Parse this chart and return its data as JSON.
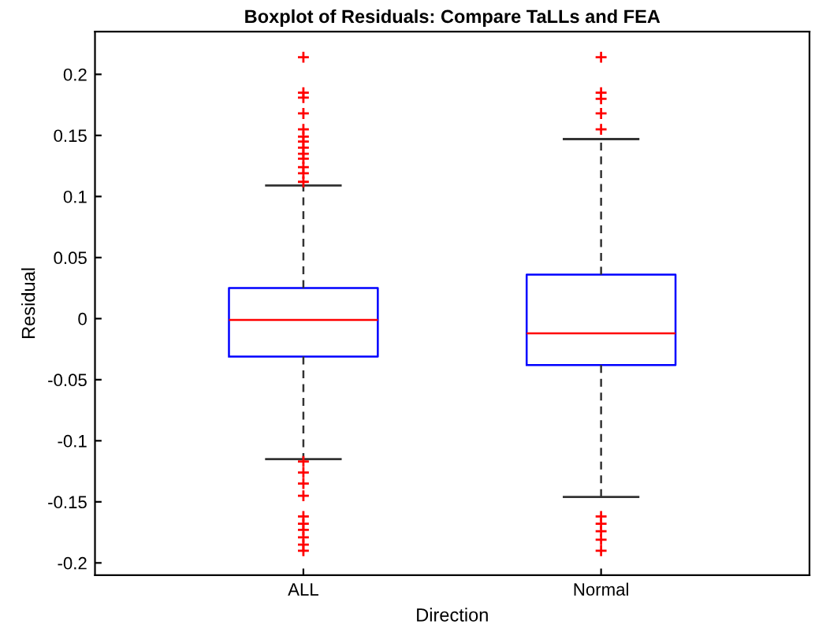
{
  "chart_data": {
    "type": "box",
    "title": "Boxplot of Residuals: Compare TaLLs and FEA",
    "xlabel": "Direction",
    "ylabel": "Residual",
    "categories": [
      "ALL",
      "Normal"
    ],
    "boxes": [
      {
        "low": -0.115,
        "q1": -0.031,
        "median": -0.001,
        "q3": 0.025,
        "high": 0.109,
        "outliers": [
          0.214,
          0.185,
          0.181,
          0.168,
          0.155,
          0.149,
          0.145,
          0.14,
          0.135,
          0.131,
          0.124,
          0.119,
          0.112,
          -0.117,
          -0.126,
          -0.135,
          -0.145,
          -0.162,
          -0.168,
          -0.173,
          -0.179,
          -0.185,
          -0.19
        ]
      },
      {
        "low": -0.146,
        "q1": -0.038,
        "median": -0.012,
        "q3": 0.036,
        "high": 0.147,
        "outliers": [
          0.214,
          0.185,
          0.18,
          0.168,
          0.155,
          -0.162,
          -0.168,
          -0.174,
          -0.181,
          -0.19
        ]
      }
    ],
    "color": "#0000ff",
    "ylim": [
      -0.21,
      0.235
    ],
    "yticks": [
      -0.2,
      -0.15,
      -0.1,
      -0.05,
      0,
      0.05,
      0.1,
      0.15,
      0.2
    ],
    "marker": "cross",
    "grid": false,
    "legend": false
  }
}
